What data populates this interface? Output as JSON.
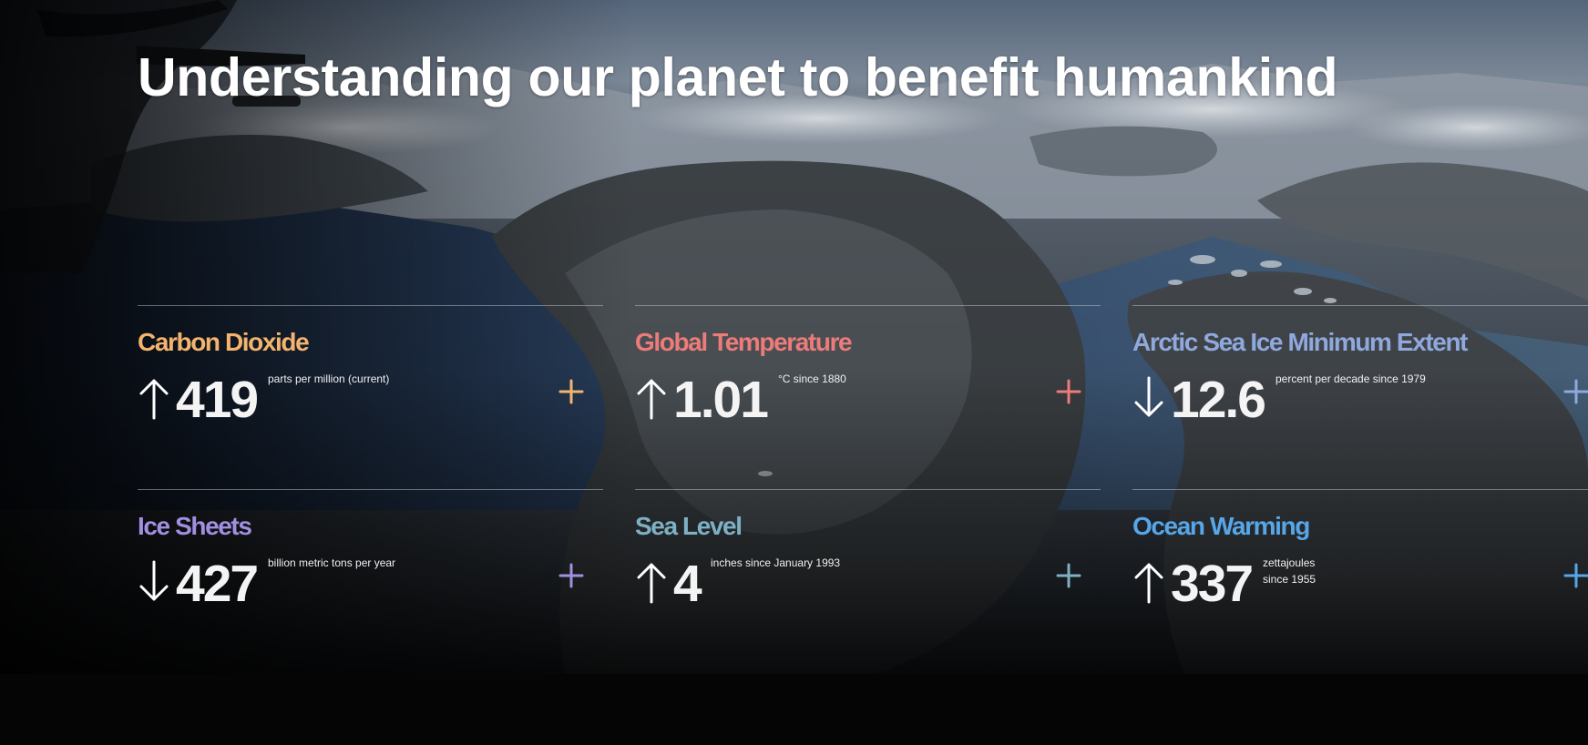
{
  "headline": "Understanding our planet to benefit humankind",
  "stats": [
    {
      "title": "Carbon Dioxide",
      "color": "#f4b46d",
      "direction": "up",
      "value": "419",
      "unit_line1": "parts per million (current)",
      "unit_line2": "",
      "icon": "arrow-up-icon"
    },
    {
      "title": "Global Temperature",
      "color": "#ec7b79",
      "direction": "up",
      "value": "1.01",
      "unit_line1": "°C since 1880",
      "unit_line2": "",
      "icon": "arrow-up-icon"
    },
    {
      "title": "Arctic Sea Ice Minimum Extent",
      "color": "#8fa9dd",
      "direction": "down",
      "value": "12.6",
      "unit_line1": "percent per decade since 1979",
      "unit_line2": "",
      "icon": "arrow-down-icon"
    },
    {
      "title": "Ice Sheets",
      "color": "#a18fe0",
      "direction": "down",
      "value": "427",
      "unit_line1": "billion metric tons per year",
      "unit_line2": "",
      "icon": "arrow-down-icon"
    },
    {
      "title": "Sea Level",
      "color": "#7eb0c4",
      "direction": "up",
      "value": "4",
      "unit_line1": "inches since January 1993",
      "unit_line2": "",
      "icon": "arrow-up-icon"
    },
    {
      "title": "Ocean Warming",
      "color": "#56a6e8",
      "direction": "up",
      "value": "337",
      "unit_line1": "zettajoules",
      "unit_line2": "since 1955",
      "icon": "arrow-up-icon"
    }
  ]
}
